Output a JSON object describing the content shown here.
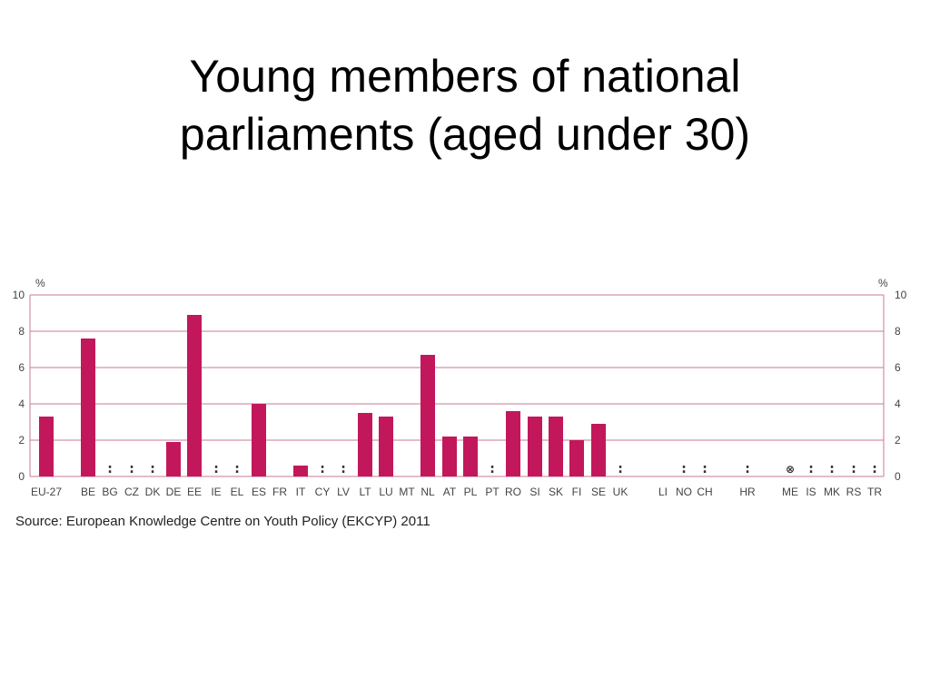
{
  "slide": {
    "title_line1": "Young members of national",
    "title_line2": "parliaments (aged under 30)",
    "source": "Source: European Knowledge Centre on Youth Policy (EKCYP) 2011"
  },
  "colors": {
    "bar": "#c2185b",
    "axis": "#c97a96",
    "grid": "#c97a96",
    "text": "#444444"
  },
  "chart_data": {
    "type": "bar",
    "unit_left": "%",
    "unit_right": "%",
    "ylim": [
      0,
      10
    ],
    "yticks": [
      0,
      2,
      4,
      6,
      8,
      10
    ],
    "grid": true,
    "categories": [
      "EU-27",
      "BE",
      "BG",
      "CZ",
      "DK",
      "DE",
      "EE",
      "IE",
      "EL",
      "ES",
      "FR",
      "IT",
      "CY",
      "LV",
      "LT",
      "LU",
      "MT",
      "NL",
      "AT",
      "PL",
      "PT",
      "RO",
      "SI",
      "SK",
      "FI",
      "SE",
      "UK",
      "LI",
      "NO",
      "CH",
      "HR",
      "ME",
      "IS",
      "MK",
      "RS",
      "TR"
    ],
    "values": [
      3.3,
      7.6,
      null,
      null,
      null,
      1.9,
      8.9,
      null,
      null,
      4.0,
      null,
      0.6,
      null,
      null,
      3.5,
      3.3,
      null,
      6.7,
      2.2,
      2.2,
      null,
      3.6,
      3.3,
      3.3,
      2.0,
      2.9,
      null,
      null,
      null,
      null,
      null,
      null,
      null,
      null,
      null,
      null
    ],
    "markers": [
      "",
      "",
      ":",
      ":",
      ":",
      "",
      "",
      ":",
      ":",
      "",
      "",
      "",
      ":",
      ":",
      "",
      "",
      "",
      "",
      "",
      "",
      ":",
      "",
      "",
      "",
      "",
      "",
      ":",
      "",
      ":",
      ":",
      ":",
      "⊗",
      ":",
      ":",
      ":",
      ":"
    ]
  }
}
